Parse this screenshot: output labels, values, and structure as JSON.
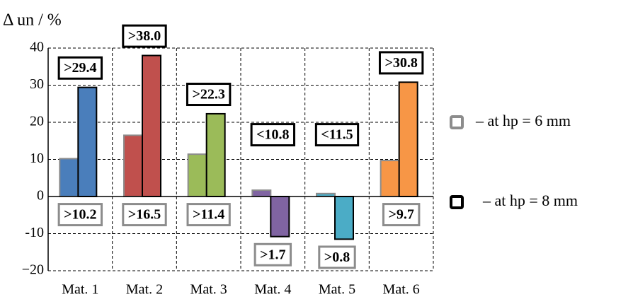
{
  "chart_data": {
    "type": "bar",
    "ylabel": "Δ un / %",
    "categories": [
      "Mat. 1",
      "Mat. 2",
      "Mat. 3",
      "Mat. 4",
      "Mat. 5",
      "Mat. 6"
    ],
    "colors": [
      "#4a7ebb",
      "#c0504d",
      "#9bbb59",
      "#8064a2",
      "#4bacc6",
      "#f79646"
    ],
    "series": [
      {
        "name": "– at  hp = 6  mm",
        "edgecolor": "#8c8c8c",
        "values": [
          10.2,
          16.5,
          11.4,
          1.7,
          0.8,
          9.7
        ],
        "value_labels": [
          ">10.2",
          ">16.5",
          ">11.4",
          ">1.7",
          ">0.8",
          ">9.7"
        ]
      },
      {
        "name": "– at  hp = 8  mm",
        "edgecolor": "#000000",
        "values": [
          29.4,
          38.0,
          22.3,
          -10.8,
          -11.5,
          30.8
        ],
        "value_labels": [
          ">29.4",
          ">38.0",
          ">22.3",
          "<10.8",
          "<11.5",
          ">30.8"
        ]
      }
    ],
    "ylim": [
      -20,
      40
    ],
    "yticks": [
      {
        "value": -20,
        "label": "−20"
      },
      {
        "value": -10,
        "label": "-10"
      },
      0,
      10,
      20,
      30,
      40
    ],
    "grid": true
  }
}
